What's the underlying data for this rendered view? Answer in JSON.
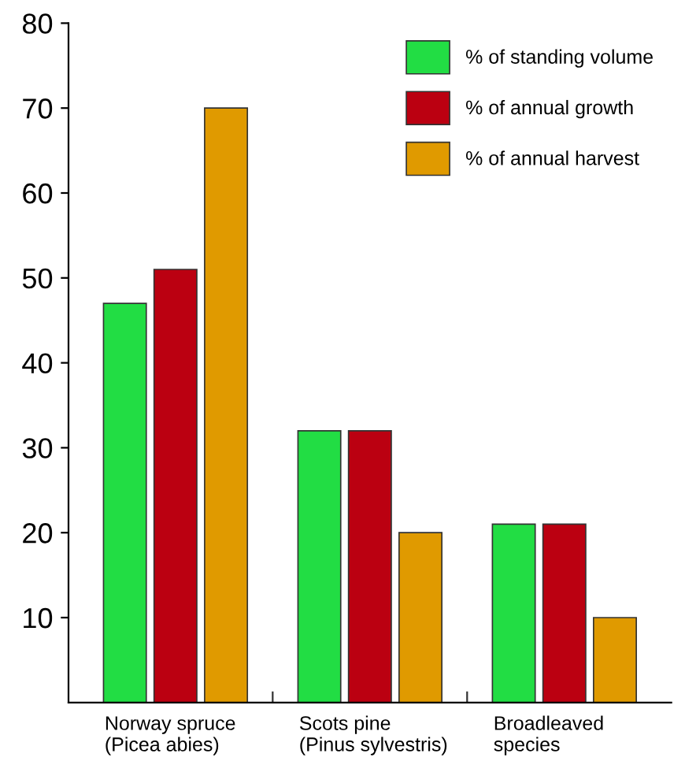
{
  "chart_data": {
    "type": "bar",
    "categories": [
      "Norway spruce\n(Picea abies)",
      "Scots pine\n(Pinus sylvestris)",
      "Broadleaved\nspecies"
    ],
    "series": [
      {
        "name": "% of standing volume",
        "color": "#22dd44",
        "values": [
          47,
          32,
          21
        ]
      },
      {
        "name": "% of annual growth",
        "color": "#bb0011",
        "values": [
          51,
          32,
          21
        ]
      },
      {
        "name": "% of annual harvest",
        "color": "#e09a00",
        "values": [
          70,
          20,
          10
        ]
      }
    ],
    "ylim": [
      0,
      80
    ],
    "yticks": [
      10,
      20,
      30,
      40,
      50,
      60,
      70,
      80
    ],
    "grid": false,
    "legend": "top right"
  }
}
